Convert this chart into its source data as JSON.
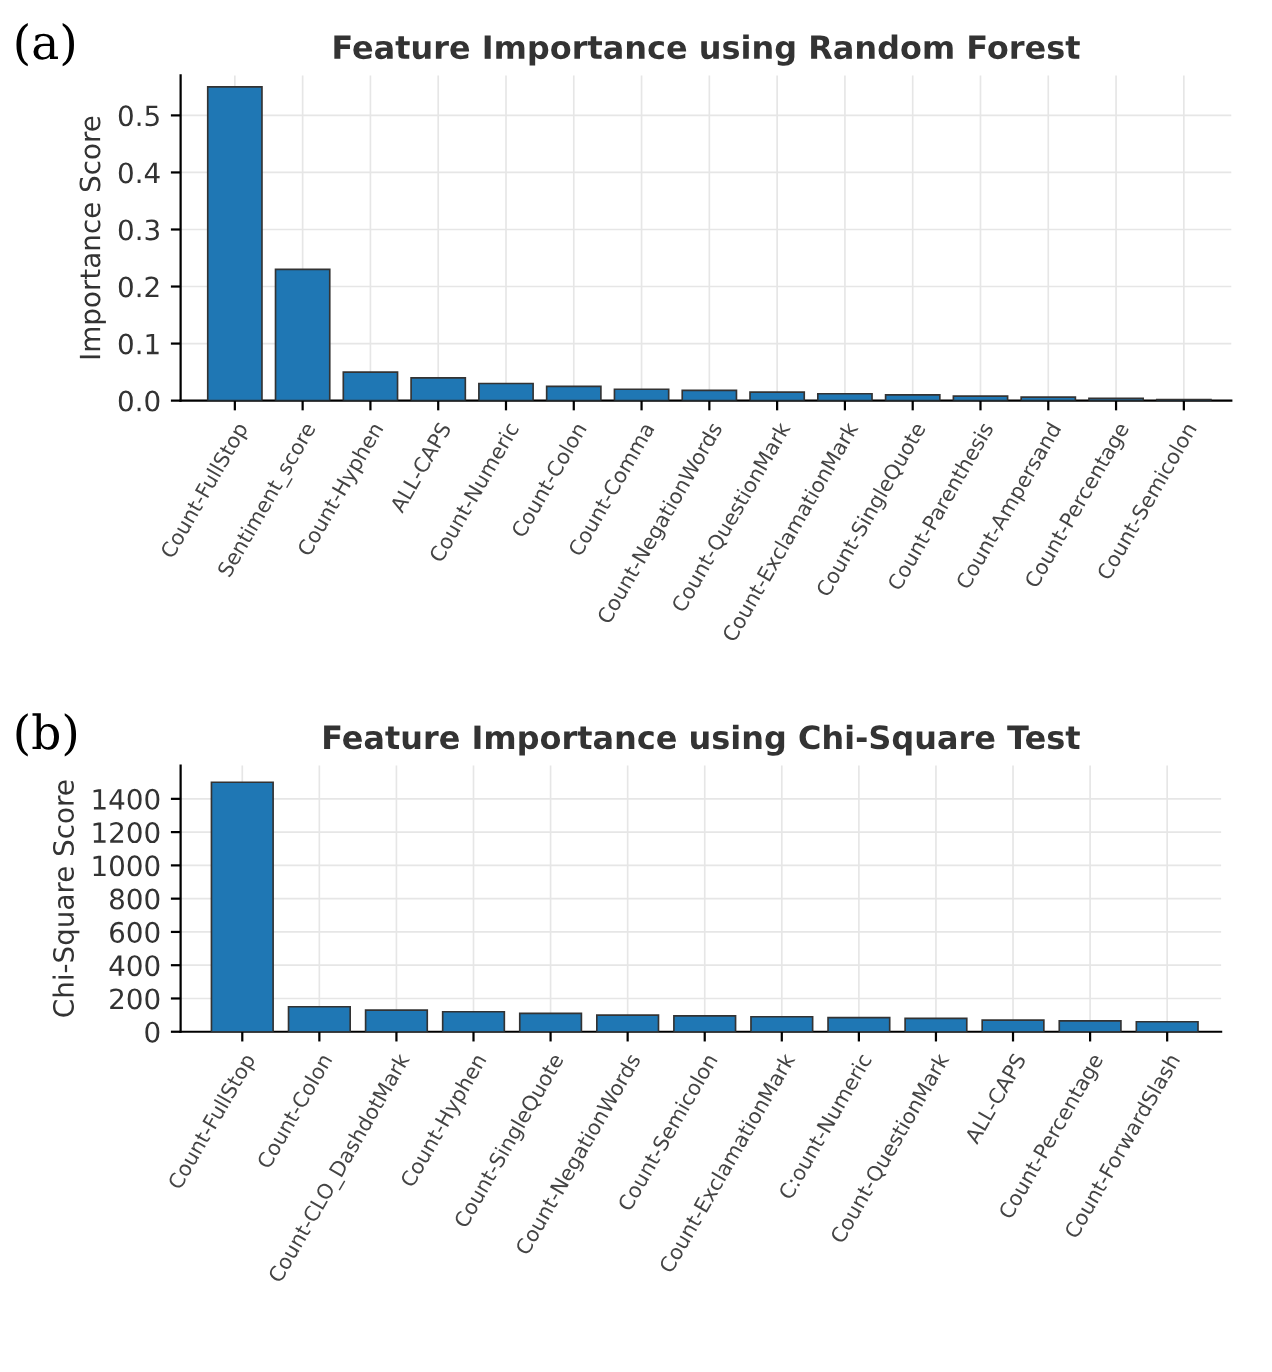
{
  "chart_data": [
    {
      "type": "bar",
      "title": "Feature Importance using Random Forest",
      "ylabel": "Importance Score",
      "annotations": [
        "(a)"
      ],
      "categories": [
        "Count-FullStop",
        "Sentiment_score",
        "Count-Hyphen",
        "ALL-CAPS",
        "Count-Numeric",
        "Count-Colon",
        "Count-Comma",
        "Count-NegationWords",
        "Count-QuestionMark",
        "Count-ExclamationMark",
        "Count-SingleQuote",
        "Count-Parenthesis",
        "Count-Ampersand",
        "Count-Percentage",
        "Count-Semicolon"
      ],
      "values": [
        0.55,
        0.23,
        0.05,
        0.04,
        0.03,
        0.025,
        0.02,
        0.018,
        0.015,
        0.012,
        0.01,
        0.008,
        0.006,
        0.004,
        0.002
      ],
      "color": "#1f77b4",
      "ylim": [
        0,
        0.57
      ],
      "yticks": [
        {
          "value": 0,
          "label": "0.0"
        },
        0.1,
        0.2,
        0.3,
        0.4,
        0.5
      ],
      "grid": true
    },
    {
      "type": "bar",
      "title": "Feature Importance using Chi-Square Test",
      "ylabel": "Chi-Square Score",
      "annotations": [
        "(b)"
      ],
      "categories": [
        "Count-FullStop",
        "Count-Colon",
        "Count-CLO_DashdotMark",
        "Count-Hyphen",
        "Count-SingleQuote",
        "Count-NegationWords",
        "Count-Semicolon",
        "Count-ExclamationMark",
        "C:ount-Numeric",
        "Count-QuestionMark",
        "ALL-CAPS",
        "Count-Percentage",
        "Count-ForwardSlash"
      ],
      "values": [
        1500,
        150,
        130,
        120,
        110,
        100,
        95,
        90,
        85,
        80,
        70,
        65,
        60
      ],
      "color": "#1f77b4",
      "ylim": [
        0,
        1600
      ],
      "yticks": [
        0,
        200,
        400,
        600,
        800,
        1000,
        1200,
        1400
      ],
      "grid": true
    }
  ]
}
